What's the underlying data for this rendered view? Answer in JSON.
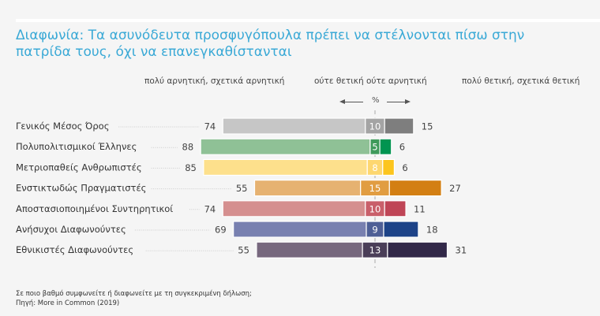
{
  "chart_data": {
    "type": "bar",
    "subtype": "diverging-stacked-horizontal",
    "title": "Διαφωνία: Τα ασυνόδευτα προσφυγόπουλα πρέπει να στέλνονται πίσω στην πατρίδα τους, όχι να επανεγκαθίστανται",
    "unit_label": "%",
    "legend": {
      "negative": "πολύ αρνητική, σχετικά αρνητική",
      "neutral": "ούτε θετική ούτε αρνητική",
      "positive": "πολύ θετική, σχετικά θετική"
    },
    "categories": [
      "Γενικός Μέσος Όρος",
      "Πολυπολιτισμικοί Έλληνες",
      "Μετριοπαθείς Ανθρωπιστές",
      "Ενστικτωδώς Πραγματιστές",
      "Αποστασιοποιημένοι Συντηρητικοί",
      "Ανήσυχοι Διαφωνούντες",
      "Εθνικιστές Διαφωνούντες"
    ],
    "series": [
      {
        "name": "πολύ αρνητική, σχετικά αρνητική",
        "values": [
          74,
          88,
          85,
          55,
          74,
          69,
          55
        ]
      },
      {
        "name": "ούτε θετική ούτε αρνητική",
        "values": [
          10,
          5,
          8,
          15,
          10,
          9,
          13
        ]
      },
      {
        "name": "πολύ θετική, σχετικά θετική",
        "values": [
          15,
          6,
          6,
          27,
          11,
          18,
          31
        ]
      }
    ],
    "colors": [
      {
        "negative": "#c6c6c6",
        "neutral": "#a4a4a4",
        "positive": "#7e7e7e"
      },
      {
        "negative": "#8fc196",
        "neutral": "#3f9a5b",
        "positive": "#019450"
      },
      {
        "negative": "#fde08c",
        "neutral": "#fdd770",
        "positive": "#fcc51d"
      },
      {
        "negative": "#e6b271",
        "neutral": "#e19d41",
        "positive": "#d37f13"
      },
      {
        "negative": "#d58f8f",
        "neutral": "#c95f6a",
        "positive": "#bf4556"
      },
      {
        "negative": "#7880b0",
        "neutral": "#4e5f96",
        "positive": "#1d4388"
      },
      {
        "negative": "#77687e",
        "neutral": "#4a3e58",
        "positive": "#322848"
      }
    ],
    "center_line": "neutral midpoint",
    "grid": false
  },
  "footer": {
    "question": "Σε ποιο βαθμό συμφωνείτε ή διαφωνείτε με τη συγκεκριμένη δήλωση;",
    "source": "Πηγή: More in Common (2019)"
  }
}
